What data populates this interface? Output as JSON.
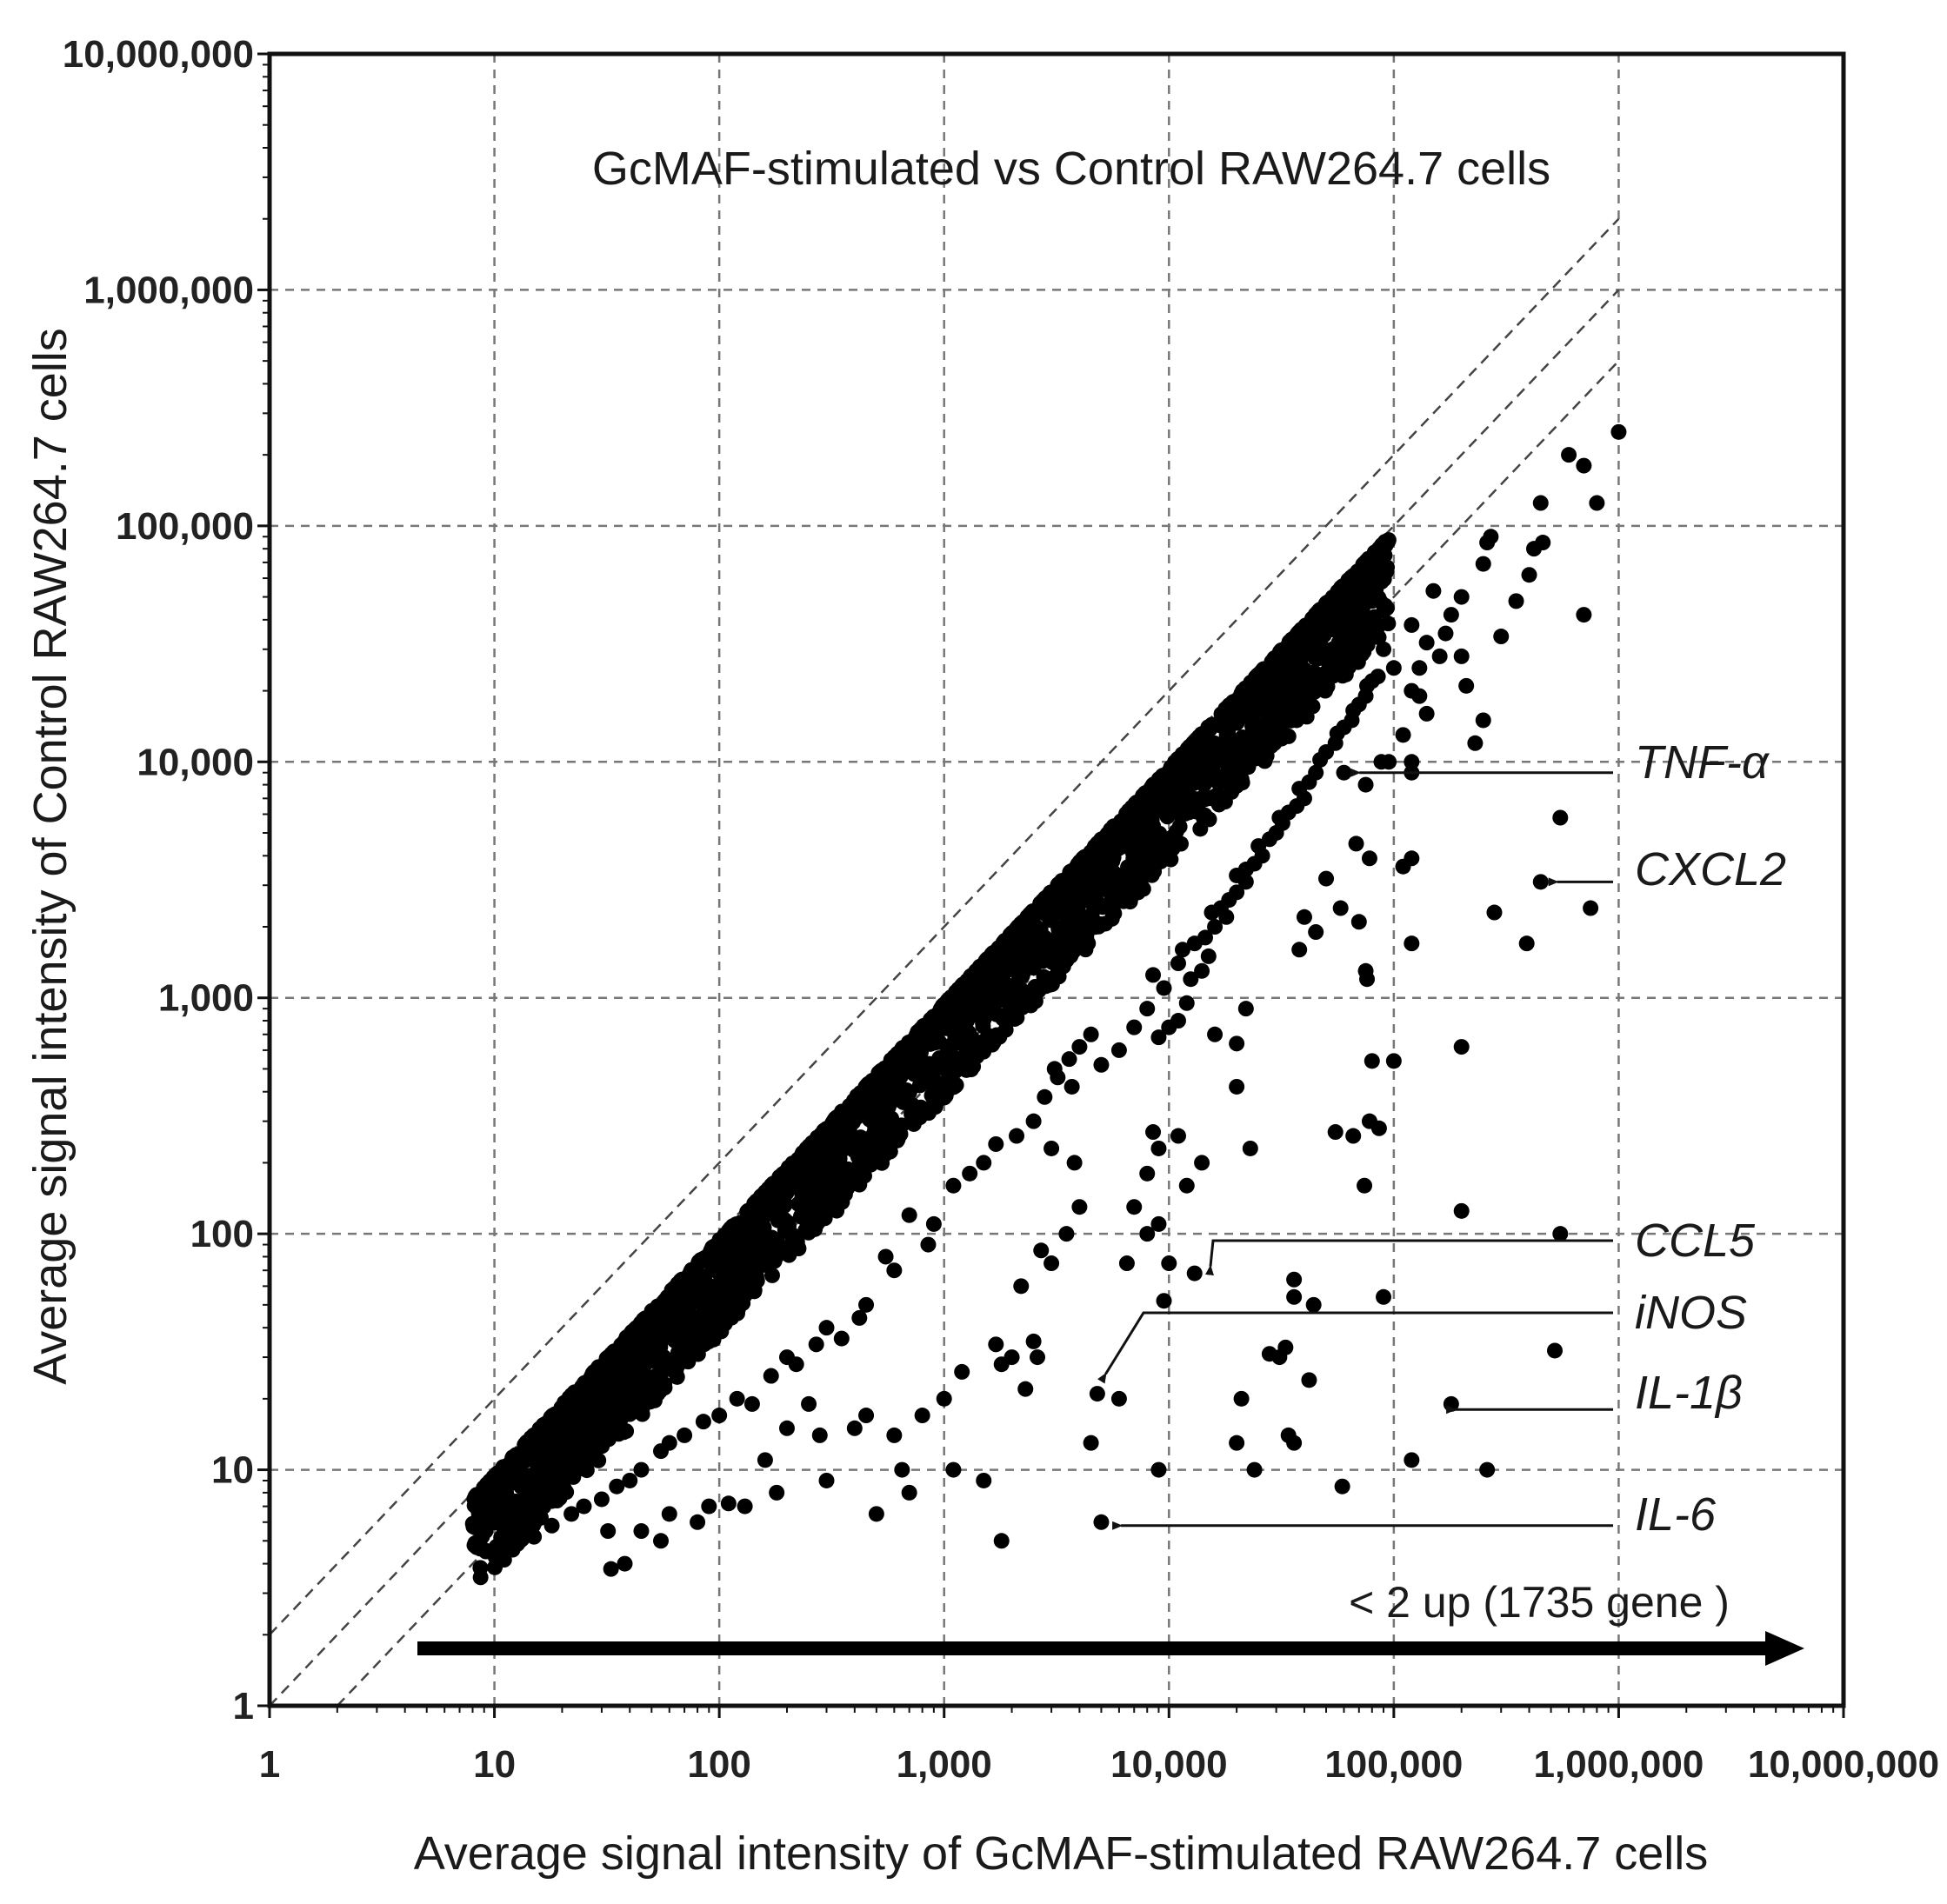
{
  "chart_data": {
    "type": "scatter",
    "title": "GcMAF-stimulated vs Control RAW264.7 cells",
    "xlabel": "Average signal intensity of GcMAF-stimulated RAW264.7 cells",
    "ylabel": "Average signal intensity of  Control RAW264.7 cells",
    "xscale": "log",
    "yscale": "log",
    "xlim": [
      1,
      10000000
    ],
    "ylim": [
      1,
      10000000
    ],
    "grid": true,
    "x_ticks": [
      {
        "value": 1,
        "label": "1"
      },
      {
        "value": 10,
        "label": "10"
      },
      {
        "value": 100,
        "label": "100"
      },
      {
        "value": 1000,
        "label": "1,000"
      },
      {
        "value": 10000,
        "label": "10,000"
      },
      {
        "value": 100000,
        "label": "100,000"
      },
      {
        "value": 1000000,
        "label": "1,000,000"
      },
      {
        "value": 10000000,
        "label": "10,000,000"
      }
    ],
    "y_ticks": [
      {
        "value": 1,
        "label": "1"
      },
      {
        "value": 10,
        "label": "10"
      },
      {
        "value": 100,
        "label": "100"
      },
      {
        "value": 1000,
        "label": "1,000"
      },
      {
        "value": 10000,
        "label": "10,000"
      },
      {
        "value": 100000,
        "label": "100,000"
      },
      {
        "value": 1000000,
        "label": "1,000,000"
      },
      {
        "value": 10000000,
        "label": "10,000,000"
      }
    ],
    "reference_lines": [
      {
        "name": "2-fold down",
        "fold": 0.5
      },
      {
        "name": "equal",
        "fold": 1
      },
      {
        "name": "2-fold up",
        "fold": 2
      }
    ],
    "series": [
      {
        "name": "upregulated genes",
        "points": [
          [
            1000000,
            250000
          ],
          [
            800000,
            125000
          ],
          [
            700000,
            180000
          ],
          [
            600000,
            200000
          ],
          [
            450000,
            125000
          ],
          [
            460000,
            85000
          ],
          [
            420000,
            80000
          ],
          [
            270000,
            90000
          ],
          [
            260000,
            85000
          ],
          [
            400000,
            62000
          ],
          [
            250000,
            69000
          ],
          [
            200000,
            50000
          ],
          [
            180000,
            42000
          ],
          [
            150000,
            53000
          ],
          [
            120000,
            38000
          ],
          [
            140000,
            32000
          ],
          [
            160000,
            28000
          ],
          [
            200000,
            28000
          ],
          [
            170000,
            35000
          ],
          [
            130000,
            25000
          ],
          [
            100000,
            25000
          ],
          [
            120000,
            20000
          ],
          [
            140000,
            16000
          ],
          [
            130000,
            19000
          ],
          [
            110000,
            13000
          ],
          [
            230000,
            12000
          ],
          [
            250000,
            15000
          ],
          [
            88000,
            10000
          ],
          [
            120000,
            10000
          ],
          [
            75000,
            8000
          ],
          [
            700000,
            42000
          ],
          [
            210000,
            21000
          ],
          [
            300000,
            34000
          ],
          [
            350000,
            48000
          ],
          [
            90000,
            30000
          ],
          [
            60000,
            9000
          ],
          [
            95000,
            10000
          ],
          [
            120000,
            9000
          ],
          [
            550000,
            5800
          ],
          [
            450000,
            3100
          ],
          [
            750000,
            2400
          ],
          [
            280000,
            2300
          ],
          [
            390000,
            1700
          ],
          [
            120000,
            3900
          ],
          [
            110000,
            3600
          ],
          [
            78000,
            3900
          ],
          [
            68000,
            4500
          ],
          [
            70000,
            2100
          ],
          [
            75000,
            1300
          ],
          [
            76000,
            1200
          ],
          [
            120000,
            1700
          ],
          [
            58000,
            2400
          ],
          [
            50000,
            3200
          ],
          [
            40000,
            2200
          ],
          [
            38000,
            1600
          ],
          [
            45000,
            1900
          ],
          [
            200000,
            620
          ],
          [
            80000,
            540
          ],
          [
            100000,
            540
          ],
          [
            78000,
            300
          ],
          [
            86000,
            280
          ],
          [
            66000,
            260
          ],
          [
            74000,
            160
          ],
          [
            55000,
            270
          ],
          [
            22000,
            900
          ],
          [
            20000,
            640
          ],
          [
            20000,
            420
          ],
          [
            16000,
            700
          ],
          [
            23000,
            230
          ],
          [
            14000,
            200
          ],
          [
            12000,
            160
          ],
          [
            8500,
            270
          ],
          [
            11000,
            260
          ],
          [
            9000,
            230
          ],
          [
            200000,
            125
          ],
          [
            550000,
            100
          ],
          [
            520000,
            32
          ],
          [
            180000,
            19
          ],
          [
            36000,
            64
          ],
          [
            36000,
            54
          ],
          [
            44000,
            50
          ],
          [
            90000,
            54
          ],
          [
            10000,
            75
          ],
          [
            9500,
            52
          ],
          [
            13000,
            68
          ],
          [
            8000,
            180
          ],
          [
            7000,
            130
          ],
          [
            9000,
            110
          ],
          [
            6500,
            75
          ],
          [
            8000,
            100
          ],
          [
            31000,
            30
          ],
          [
            33000,
            33
          ],
          [
            28000,
            31
          ],
          [
            42000,
            24
          ],
          [
            9000,
            10
          ],
          [
            36000,
            13
          ],
          [
            34000,
            14
          ],
          [
            20000,
            13
          ],
          [
            21000,
            20
          ],
          [
            24000,
            10
          ],
          [
            260000,
            10
          ],
          [
            120000,
            11
          ],
          [
            59000,
            8.5
          ],
          [
            4800,
            21
          ],
          [
            6000,
            20
          ],
          [
            4500,
            13
          ],
          [
            5000,
            6
          ],
          [
            3800,
            200
          ],
          [
            3000,
            230
          ],
          [
            4000,
            130
          ],
          [
            3500,
            100
          ],
          [
            2700,
            85
          ],
          [
            3000,
            75
          ],
          [
            2200,
            60
          ],
          [
            1700,
            34
          ],
          [
            1800,
            28
          ],
          [
            2000,
            30
          ],
          [
            2300,
            22
          ],
          [
            2500,
            35
          ],
          [
            2600,
            30
          ],
          [
            1200,
            26
          ],
          [
            1000,
            20
          ],
          [
            1100,
            10
          ],
          [
            1500,
            9
          ],
          [
            1800,
            5
          ],
          [
            800,
            17
          ],
          [
            700,
            8
          ],
          [
            500,
            6.5
          ],
          [
            600,
            14
          ],
          [
            650,
            10
          ],
          [
            450,
            17
          ],
          [
            400,
            15
          ],
          [
            300,
            9
          ],
          [
            280,
            14
          ],
          [
            250,
            19
          ],
          [
            200,
            15
          ],
          [
            180,
            8
          ],
          [
            160,
            11
          ],
          [
            130,
            7
          ],
          [
            110,
            7.2
          ],
          [
            90,
            7
          ],
          [
            80,
            6
          ],
          [
            60,
            6.5
          ],
          [
            55,
            5
          ],
          [
            45,
            5.5
          ],
          [
            38,
            4
          ],
          [
            33,
            3.8
          ],
          [
            32,
            5.5
          ],
          [
            3700,
            420
          ],
          [
            3100,
            500
          ],
          [
            2800,
            380
          ],
          [
            2500,
            300
          ],
          [
            2100,
            260
          ],
          [
            1700,
            240
          ],
          [
            1500,
            200
          ],
          [
            1300,
            180
          ],
          [
            1100,
            160
          ],
          [
            900,
            110
          ],
          [
            850,
            90
          ],
          [
            700,
            120
          ],
          [
            600,
            70
          ],
          [
            550,
            80
          ],
          [
            450,
            50
          ],
          [
            420,
            44
          ],
          [
            350,
            36
          ],
          [
            300,
            40
          ],
          [
            270,
            34
          ],
          [
            220,
            28
          ],
          [
            200,
            30
          ],
          [
            170,
            25
          ],
          [
            140,
            19
          ],
          [
            120,
            20
          ],
          [
            100,
            17
          ],
          [
            85,
            16
          ],
          [
            70,
            14
          ],
          [
            60,
            13
          ],
          [
            55,
            12
          ],
          [
            45,
            10
          ],
          [
            40,
            9
          ],
          [
            35,
            8.5
          ],
          [
            30,
            7.5
          ],
          [
            25,
            7
          ],
          [
            22,
            6.5
          ],
          [
            18,
            5.8
          ],
          [
            15,
            5.2
          ],
          [
            13,
            5.0
          ],
          [
            12000,
            950
          ],
          [
            11000,
            800
          ],
          [
            10000,
            750
          ],
          [
            9000,
            680
          ],
          [
            8000,
            900
          ],
          [
            7000,
            750
          ],
          [
            6000,
            600
          ],
          [
            5000,
            520
          ],
          [
            4500,
            700
          ],
          [
            4000,
            620
          ],
          [
            3600,
            550
          ],
          [
            3200,
            460
          ],
          [
            15000,
            1500
          ],
          [
            14000,
            1300
          ],
          [
            12500,
            1200
          ],
          [
            11000,
            1400
          ],
          [
            9500,
            1100
          ],
          [
            8500,
            1250
          ],
          [
            18000,
            2200
          ],
          [
            16000,
            2000
          ],
          [
            14500,
            1800
          ],
          [
            13000,
            1700
          ],
          [
            11500,
            1600
          ],
          [
            22000,
            3100
          ],
          [
            20000,
            2800
          ],
          [
            18500,
            2600
          ],
          [
            17000,
            2400
          ],
          [
            15500,
            2300
          ],
          [
            26000,
            4000
          ],
          [
            24000,
            3700
          ],
          [
            22000,
            3500
          ],
          [
            20000,
            3300
          ],
          [
            32000,
            5500
          ],
          [
            30000,
            5000
          ],
          [
            28000,
            4700
          ],
          [
            25000,
            4400
          ],
          [
            40000,
            7000
          ],
          [
            37000,
            6500
          ],
          [
            34000,
            6100
          ],
          [
            31000,
            5800
          ],
          [
            45000,
            9000
          ],
          [
            42000,
            8200
          ],
          [
            38000,
            7700
          ],
          [
            55000,
            12000
          ],
          [
            50000,
            11000
          ],
          [
            47000,
            10200
          ],
          [
            65000,
            15000
          ],
          [
            60000,
            14000
          ],
          [
            56000,
            13200
          ],
          [
            75000,
            19000
          ],
          [
            70000,
            17500
          ],
          [
            66000,
            16500
          ],
          [
            85000,
            23000
          ],
          [
            80000,
            22000
          ],
          [
            76000,
            21000
          ]
        ]
      },
      {
        "name": "diagonal band",
        "band": {
          "x_start": 8,
          "x_end": 95000,
          "fold_min": 1.0,
          "fold_max": 2.5,
          "count": 2600
        }
      }
    ],
    "annotations": [
      {
        "label": "TNF-α",
        "x": 62000,
        "y": 9000
      },
      {
        "label": "CXCL2",
        "x": 470000,
        "y": 3100
      },
      {
        "label": "CCL5",
        "x": 13500,
        "y": 68
      },
      {
        "label": "iNOS",
        "x": 4700,
        "y": 23
      },
      {
        "label": "IL-1β",
        "x": 165000,
        "y": 18
      },
      {
        "label": "IL-6",
        "x": 5400,
        "y": 5.8
      }
    ],
    "summary_arrow": {
      "label": "< 2 up (1735 gene )"
    }
  }
}
